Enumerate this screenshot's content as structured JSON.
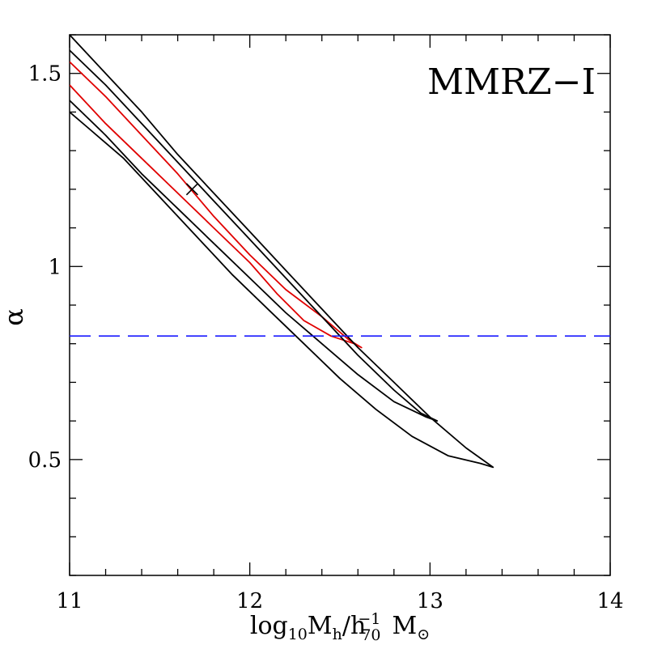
{
  "chart_data": {
    "type": "line",
    "panel_label": "MMRZ−I",
    "xlabel": {
      "main": "log",
      "sub1": "10",
      "mid": "M",
      "sub2": "h",
      "slash": "/h",
      "sup": "−1",
      "sub3": "70",
      "tail": "M",
      "sub4": "⊙"
    },
    "ylabel": "α",
    "xlim": [
      11,
      14
    ],
    "ylim": [
      0.2,
      1.6
    ],
    "x_ticks": [
      11,
      12,
      13,
      14
    ],
    "x_tick_labels": [
      "11",
      "12",
      "13",
      "14"
    ],
    "y_ticks": [
      0.5,
      1.0,
      1.5
    ],
    "y_tick_labels": [
      "0.5",
      "1",
      "1.5"
    ],
    "x_minor_step": 0.2,
    "y_minor_step": 0.1,
    "grid": false,
    "best_fit": {
      "x": 11.68,
      "y": 1.2,
      "marker": "x"
    },
    "reference_line": {
      "y": 0.82,
      "style": "dashed",
      "color": "#1a1aff"
    },
    "contours": [
      {
        "name": "",
        "color": "#e00000",
        "points": [
          [
            11.0,
            1.53
          ],
          [
            11.2,
            1.44
          ],
          [
            11.4,
            1.34
          ],
          [
            11.6,
            1.24
          ],
          [
            11.8,
            1.13
          ],
          [
            12.0,
            1.03
          ],
          [
            12.2,
            0.94
          ],
          [
            12.4,
            0.87
          ],
          [
            12.55,
            0.81
          ],
          [
            12.62,
            0.79
          ],
          [
            12.58,
            0.8
          ],
          [
            12.45,
            0.82
          ],
          [
            12.3,
            0.86
          ],
          [
            12.15,
            0.93
          ],
          [
            12.0,
            1.01
          ],
          [
            11.8,
            1.1
          ],
          [
            11.6,
            1.19
          ],
          [
            11.4,
            1.28
          ],
          [
            11.2,
            1.37
          ],
          [
            11.0,
            1.47
          ]
        ]
      },
      {
        "name": "",
        "color": "#000000",
        "points": [
          [
            11.0,
            1.56
          ],
          [
            11.2,
            1.47
          ],
          [
            11.4,
            1.37
          ],
          [
            11.6,
            1.27
          ],
          [
            11.8,
            1.17
          ],
          [
            12.0,
            1.07
          ],
          [
            12.2,
            0.97
          ],
          [
            12.4,
            0.87
          ],
          [
            12.6,
            0.77
          ],
          [
            12.8,
            0.68
          ],
          [
            12.95,
            0.62
          ],
          [
            13.04,
            0.6
          ],
          [
            12.98,
            0.61
          ],
          [
            12.8,
            0.65
          ],
          [
            12.6,
            0.72
          ],
          [
            12.4,
            0.8
          ],
          [
            12.2,
            0.88
          ],
          [
            12.0,
            0.97
          ],
          [
            11.8,
            1.06
          ],
          [
            11.6,
            1.15
          ],
          [
            11.4,
            1.24
          ],
          [
            11.2,
            1.34
          ],
          [
            11.0,
            1.43
          ]
        ]
      },
      {
        "name": "",
        "color": "#000000",
        "points": [
          [
            11.0,
            1.6
          ],
          [
            11.2,
            1.5
          ],
          [
            11.4,
            1.4
          ],
          [
            11.6,
            1.29
          ],
          [
            11.8,
            1.19
          ],
          [
            12.0,
            1.09
          ],
          [
            12.2,
            0.99
          ],
          [
            12.4,
            0.89
          ],
          [
            12.6,
            0.79
          ],
          [
            12.8,
            0.7
          ],
          [
            13.0,
            0.61
          ],
          [
            13.2,
            0.53
          ],
          [
            13.35,
            0.48
          ],
          [
            13.28,
            0.49
          ],
          [
            13.1,
            0.51
          ],
          [
            12.9,
            0.56
          ],
          [
            12.7,
            0.63
          ],
          [
            12.5,
            0.71
          ],
          [
            12.3,
            0.8
          ],
          [
            12.1,
            0.89
          ],
          [
            11.9,
            0.98
          ],
          [
            11.7,
            1.08
          ],
          [
            11.5,
            1.18
          ],
          [
            11.3,
            1.28
          ],
          [
            11.1,
            1.36
          ],
          [
            11.0,
            1.4
          ]
        ]
      }
    ]
  }
}
